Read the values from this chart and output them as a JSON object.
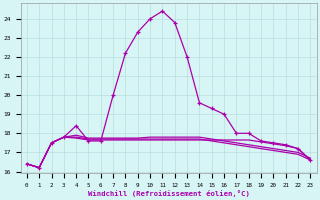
{
  "xlabel": "Windchill (Refroidissement éolien,°C)",
  "hours": [
    0,
    1,
    2,
    3,
    4,
    5,
    6,
    7,
    8,
    9,
    10,
    11,
    12,
    13,
    14,
    15,
    16,
    17,
    18,
    19,
    20,
    21,
    22,
    23
  ],
  "temp": [
    16.4,
    16.2,
    17.5,
    17.8,
    18.4,
    17.6,
    17.6,
    20.0,
    22.2,
    23.3,
    24.0,
    24.4,
    23.8,
    22.0,
    19.6,
    19.3,
    19.0,
    18.0,
    18.0,
    17.6,
    17.5,
    17.4,
    17.2,
    16.6
  ],
  "line1": [
    16.4,
    16.2,
    17.5,
    17.8,
    17.75,
    17.65,
    17.65,
    17.65,
    17.65,
    17.65,
    17.65,
    17.65,
    17.65,
    17.65,
    17.65,
    17.65,
    17.65,
    17.65,
    17.65,
    17.55,
    17.45,
    17.35,
    17.2,
    16.6
  ],
  "line2": [
    16.4,
    16.2,
    17.5,
    17.8,
    17.8,
    17.7,
    17.7,
    17.7,
    17.7,
    17.7,
    17.7,
    17.7,
    17.7,
    17.7,
    17.7,
    17.6,
    17.5,
    17.4,
    17.3,
    17.2,
    17.1,
    17.0,
    16.9,
    16.6
  ],
  "line3": [
    16.4,
    16.2,
    17.5,
    17.8,
    17.9,
    17.75,
    17.75,
    17.75,
    17.75,
    17.75,
    17.8,
    17.8,
    17.8,
    17.8,
    17.8,
    17.7,
    17.6,
    17.5,
    17.4,
    17.3,
    17.2,
    17.1,
    17.0,
    16.7
  ],
  "line_color": "#aa00aa",
  "bg_color": "#d8f5f5",
  "grid_color": "#b8dede",
  "ylim_min": 15.9,
  "ylim_max": 24.8,
  "yticks": [
    16,
    17,
    18,
    19,
    20,
    21,
    22,
    23,
    24
  ]
}
